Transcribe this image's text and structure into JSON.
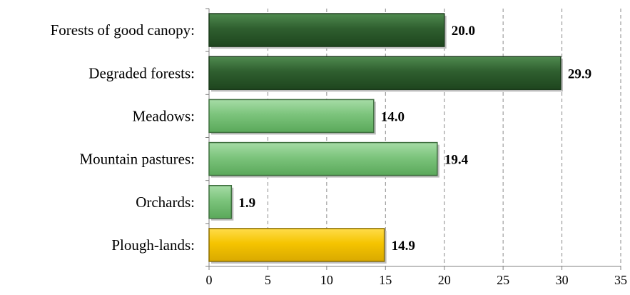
{
  "chart_data": {
    "type": "bar",
    "orientation": "horizontal",
    "categories": [
      "Forests of good canopy:",
      "Degraded forests:",
      "Meadows:",
      "Mountain pastures:",
      "Orchards:",
      "Plough-lands:"
    ],
    "values": [
      20.0,
      29.9,
      14.0,
      19.4,
      1.9,
      14.9
    ],
    "value_labels": [
      "20.0",
      "29.9",
      "14.0",
      "19.4",
      "1.9",
      "14.9"
    ],
    "bar_colors": [
      "#2e5e2e",
      "#2e5e2e",
      "#7cc47c",
      "#7cc47c",
      "#7cc47c",
      "#f5c400"
    ],
    "xlim": [
      0,
      35
    ],
    "xticks": [
      0,
      5,
      10,
      15,
      20,
      25,
      30,
      35
    ],
    "xtick_labels": [
      "0",
      "5",
      "10",
      "15",
      "20",
      "25",
      "30",
      "35"
    ],
    "title": "",
    "xlabel": "",
    "ylabel": "",
    "grid": "vertical dashed",
    "legend": "none"
  }
}
